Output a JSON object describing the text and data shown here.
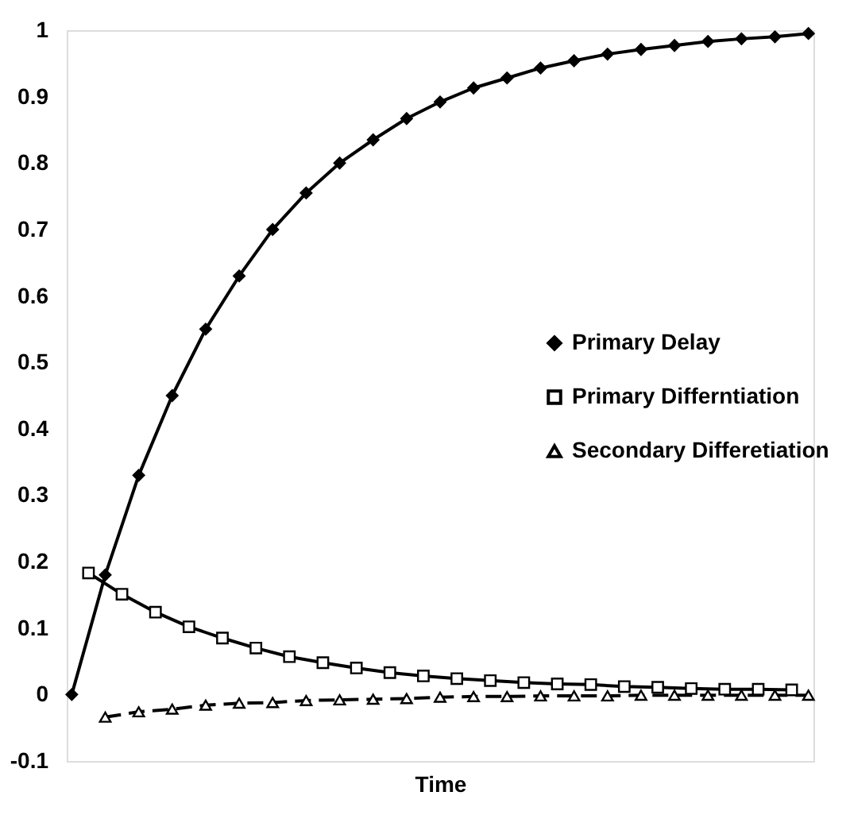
{
  "chart_data": {
    "type": "line",
    "xlabel": "Time",
    "ylim": [
      -0.1,
      1
    ],
    "yticks": [
      -0.1,
      0,
      0.1,
      0.2,
      0.3,
      0.4,
      0.5,
      0.6,
      0.7,
      0.8,
      0.9,
      1
    ],
    "tick_labels": "y",
    "grid": false,
    "legend": "right",
    "categories": [
      null,
      null,
      null,
      null,
      null,
      null,
      null,
      null,
      null,
      null,
      null,
      null,
      null,
      null,
      null,
      null,
      null,
      null,
      null,
      null,
      null,
      null,
      null,
      null,
      null,
      null,
      null,
      null,
      null,
      null,
      null,
      null,
      null,
      null,
      null,
      null,
      null,
      null,
      null,
      null,
      null,
      null,
      null,
      null,
      null
    ],
    "series": [
      {
        "name": "Primary Delay",
        "color": "#000000",
        "marker": "diamond",
        "line_style": "solid",
        "values": [
          0,
          null,
          0.18,
          null,
          0.33,
          null,
          0.45,
          null,
          0.55,
          null,
          0.63,
          null,
          0.7,
          null,
          0.755,
          null,
          0.8,
          null,
          0.835,
          null,
          0.867,
          null,
          0.892,
          null,
          0.913,
          null,
          0.928,
          null,
          0.943,
          null,
          0.954,
          null,
          0.964,
          null,
          0.971,
          null,
          0.977,
          null,
          0.983,
          null,
          0.987,
          null,
          0.99,
          null,
          0.995
        ]
      },
      {
        "name": "Primary Differntiation",
        "color": "#000000",
        "marker": "square",
        "line_style": "solid",
        "values": [
          null,
          0.183,
          null,
          0.151,
          null,
          0.124,
          null,
          0.102,
          null,
          0.085,
          null,
          0.07,
          null,
          0.057,
          null,
          0.048,
          null,
          0.04,
          null,
          0.033,
          null,
          0.028,
          null,
          0.024,
          null,
          0.021,
          null,
          0.018,
          null,
          0.016,
          null,
          0.015,
          null,
          0.012,
          null,
          0.011,
          null,
          0.009,
          null,
          0.008,
          null,
          0.008,
          null,
          0.007,
          null
        ]
      },
      {
        "name": "Secondary Differetiation",
        "color": "#000000",
        "marker": "triangle",
        "line_style": "dashed",
        "values": [
          null,
          null,
          -0.034,
          null,
          -0.026,
          null,
          -0.022,
          null,
          -0.016,
          null,
          -0.013,
          null,
          -0.012,
          null,
          -0.009,
          null,
          -0.008,
          null,
          -0.007,
          null,
          -0.006,
          null,
          -0.004,
          null,
          -0.003,
          null,
          -0.003,
          null,
          -0.002,
          null,
          -0.002,
          null,
          -0.002,
          null,
          -0.001,
          null,
          -0.001,
          null,
          -0.001,
          null,
          -0.001,
          null,
          -0.001,
          null,
          -0.001
        ]
      }
    ]
  }
}
